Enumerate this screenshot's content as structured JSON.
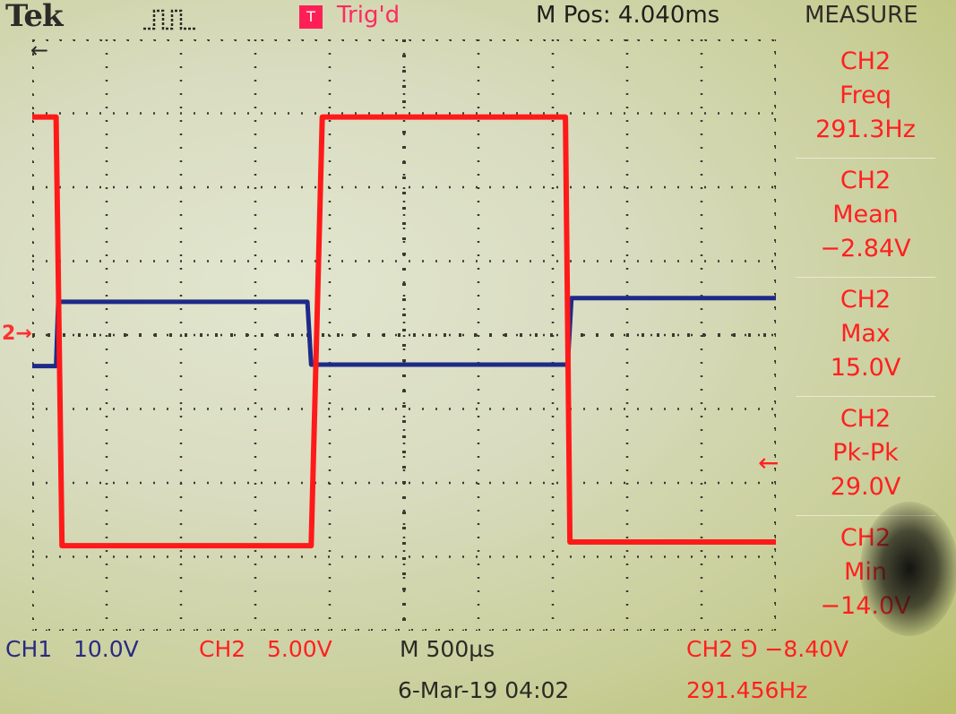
{
  "header": {
    "brand": "Tek",
    "acquire_icon": "pulse-acquire-icon",
    "trigger_badge": "T",
    "trigger_status": "Trig'd",
    "m_pos": "M Pos: 4.040ms",
    "menu_title": "MEASURE"
  },
  "markers": {
    "ch2_ground": "2→",
    "trigger_position": "←",
    "trigger_level": "←"
  },
  "measurements": [
    {
      "source": "CH2",
      "type": "Freq",
      "value": "291.3Hz"
    },
    {
      "source": "CH2",
      "type": "Mean",
      "value": "−2.84V"
    },
    {
      "source": "CH2",
      "type": "Max",
      "value": "15.0V"
    },
    {
      "source": "CH2",
      "type": "Pk-Pk",
      "value": "29.0V"
    },
    {
      "source": "CH2",
      "type": "Min",
      "value": "−14.0V"
    }
  ],
  "status": {
    "ch1_label": "CH1",
    "ch1_scale": "10.0V",
    "ch2_label": "CH2",
    "ch2_scale": "5.00V",
    "timebase": "M 500µs",
    "trigger": "CH2 ⅁ −8.40V",
    "date_time": "6-Mar-19 04:02",
    "trigger_freq": "291.456Hz"
  },
  "colors": {
    "ch1": "#1e2a88",
    "ch2": "#ff1a1a",
    "grid": "#3a3a30",
    "menu_text": "#ff2020"
  },
  "chart_data": {
    "type": "line",
    "xlabel": "",
    "ylabel": "",
    "grid": true,
    "divisions": {
      "x": 10,
      "y": 8
    },
    "series": [
      {
        "name": "CH2",
        "units": "div",
        "x": [
          0,
          0.32,
          0.4,
          3.75,
          3.9,
          7.17,
          7.23,
          10
        ],
        "y": [
          2.95,
          2.95,
          -2.85,
          -2.85,
          2.95,
          2.95,
          -2.8,
          -2.8
        ]
      },
      {
        "name": "CH1",
        "units": "div",
        "x": [
          0,
          0.32,
          0.35,
          3.7,
          3.75,
          7.2,
          7.25,
          10
        ],
        "y": [
          -0.42,
          -0.42,
          0.45,
          0.45,
          -0.4,
          -0.4,
          0.5,
          0.5
        ]
      }
    ]
  }
}
